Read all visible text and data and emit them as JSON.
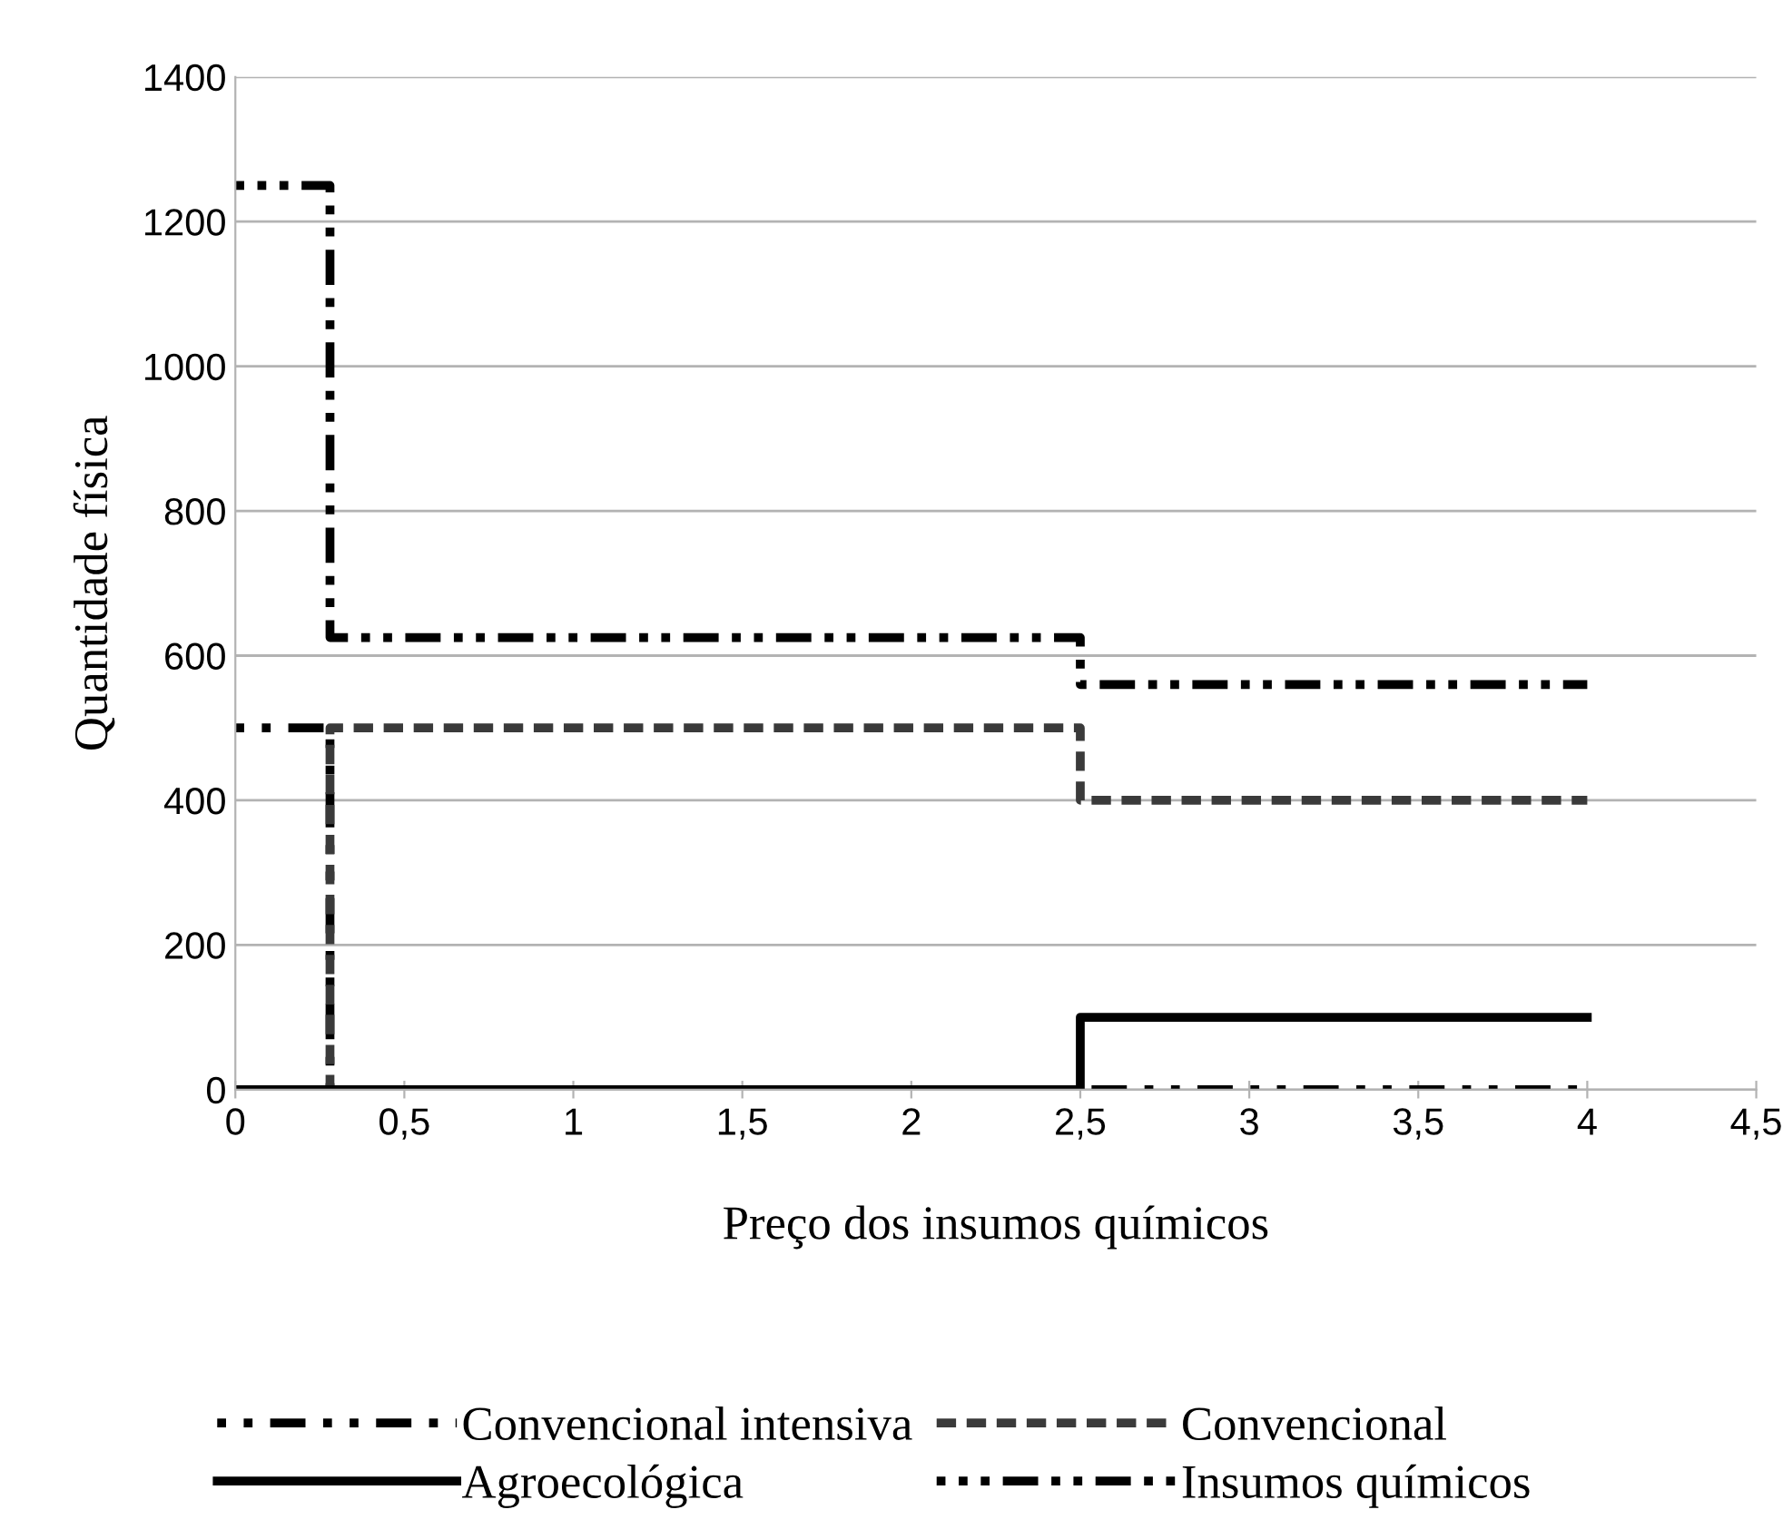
{
  "chart_data": {
    "type": "step",
    "xlabel": "Preço dos insumos químicos",
    "ylabel": "Quantidade física",
    "x": [
      0,
      0.28,
      2.5,
      4
    ],
    "series": [
      {
        "name": "Convencional intensiva",
        "color": "#000000",
        "line_style": "dotted",
        "values": [
          500,
          0,
          0,
          0
        ]
      },
      {
        "name": "Convencional",
        "color": "#3a3a3a",
        "line_style": "dashed",
        "values": [
          0,
          500,
          400,
          400
        ]
      },
      {
        "name": "Agroecológica",
        "color": "#000000",
        "line_style": "solid",
        "values": [
          0,
          0,
          100,
          100
        ]
      },
      {
        "name": "Insumos químicos",
        "color": "#000000",
        "line_style": "dashdot",
        "values": [
          1250,
          625,
          560,
          560
        ]
      }
    ],
    "xlim": [
      0,
      4.5
    ],
    "xticks": [
      {
        "value": 0,
        "label": "0"
      },
      {
        "value": 0.5,
        "label": "0,5"
      },
      {
        "value": 1,
        "label": "1"
      },
      {
        "value": 1.5,
        "label": "1,5"
      },
      {
        "value": 2,
        "label": "2"
      },
      {
        "value": 2.5,
        "label": "2,5"
      },
      {
        "value": 3,
        "label": "3"
      },
      {
        "value": 3.5,
        "label": "3,5"
      },
      {
        "value": 4,
        "label": "4"
      },
      {
        "value": 4.5,
        "label": "4,5"
      }
    ],
    "ylim": [
      0,
      1400
    ],
    "yticks": [
      0,
      200,
      400,
      600,
      800,
      1000,
      1200,
      1400
    ],
    "grid": "y",
    "legend": "bottom"
  }
}
